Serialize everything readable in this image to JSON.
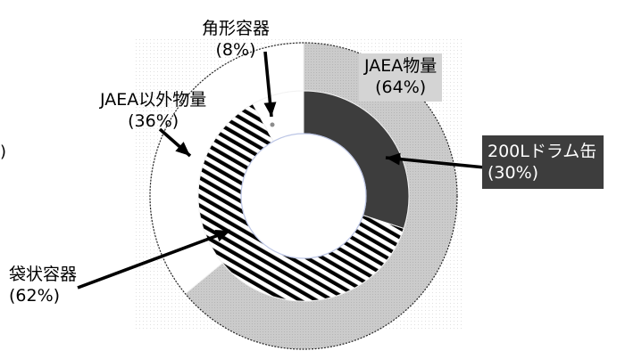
{
  "chart_data": {
    "type": "pie",
    "subtype": "nested-donut",
    "title": "",
    "rings": [
      {
        "ring": "outer",
        "slices": [
          {
            "label": "JAEA物量",
            "value": 64,
            "color": "#c8c8c8",
            "fill": "dotted-gray"
          },
          {
            "label": "JAEA以外物量",
            "value": 36,
            "color": "#ffffff",
            "fill": "white"
          }
        ]
      },
      {
        "ring": "inner",
        "slices": [
          {
            "label": "200Lドラム缶",
            "value": 30,
            "color": "#3d3d3d",
            "fill": "solid-dark"
          },
          {
            "label": "袋状容器",
            "value": 62,
            "color": "#000000",
            "fill": "diagonal-stripes"
          },
          {
            "label": "角形容器",
            "value": 8,
            "color": "#ffffff",
            "fill": "white"
          }
        ]
      }
    ],
    "labels": {
      "jaea": {
        "name": "JAEA物量",
        "pct": "(64%)"
      },
      "drum": {
        "name": "200Lドラム缶",
        "pct": "(30%)"
      },
      "square": {
        "name": "角形容器",
        "pct": "(8%)"
      },
      "nonjaea": {
        "name": "JAEA以外物量",
        "pct": "(36%)"
      },
      "bag": {
        "name": "袋状容器",
        "pct": "(62%)"
      }
    },
    "legend": "none",
    "grid": false
  },
  "edge_fragment": ")"
}
